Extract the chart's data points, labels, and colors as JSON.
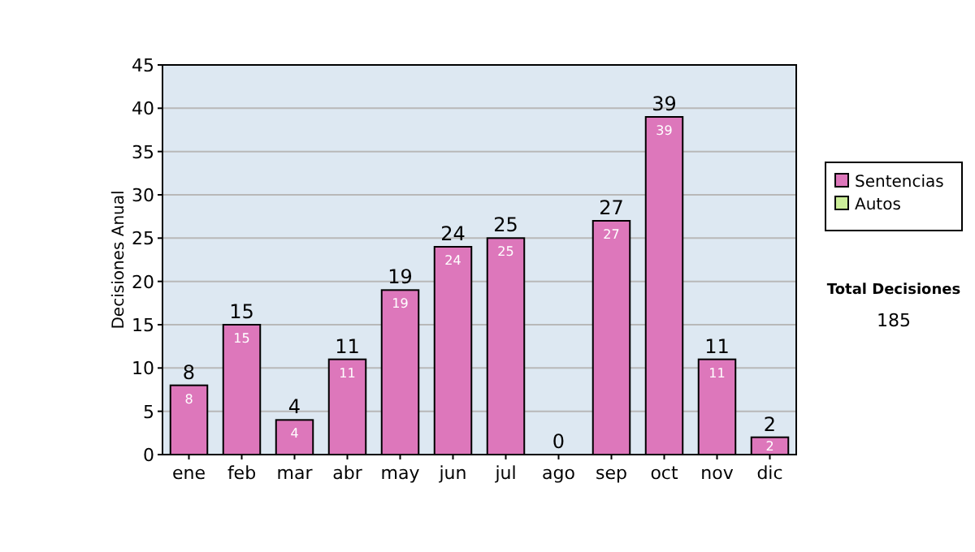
{
  "chart_data": {
    "type": "bar",
    "stacked": true,
    "ylabel": "Decisiones Anual",
    "categories": [
      "ene",
      "feb",
      "mar",
      "abr",
      "may",
      "jun",
      "jul",
      "ago",
      "sep",
      "oct",
      "nov",
      "dic"
    ],
    "series": [
      {
        "name": "Sentencias",
        "color": "#dd77bb",
        "values": [
          8,
          15,
          4,
          11,
          19,
          24,
          25,
          0,
          27,
          39,
          11,
          2
        ],
        "value_labels": [
          "8",
          "15",
          "4",
          "11",
          "19",
          "24",
          "25",
          null,
          "27",
          "39",
          "11",
          "2"
        ]
      },
      {
        "name": "Autos",
        "color": "#ccee99",
        "values": [
          0,
          0,
          0,
          0,
          0,
          0,
          0,
          0,
          0,
          0,
          0,
          0
        ]
      }
    ],
    "totals": [
      "8",
      "15",
      "4",
      "11",
      "19",
      "24",
      "25",
      "0",
      "27",
      "39",
      "11",
      "2"
    ],
    "ylim": [
      0,
      45
    ],
    "yticks": [
      0,
      5,
      10,
      15,
      20,
      25,
      30,
      35,
      40,
      45
    ],
    "grid": "y",
    "legend": "right",
    "annotations": [
      "Total Decisiones",
      "185"
    ]
  }
}
